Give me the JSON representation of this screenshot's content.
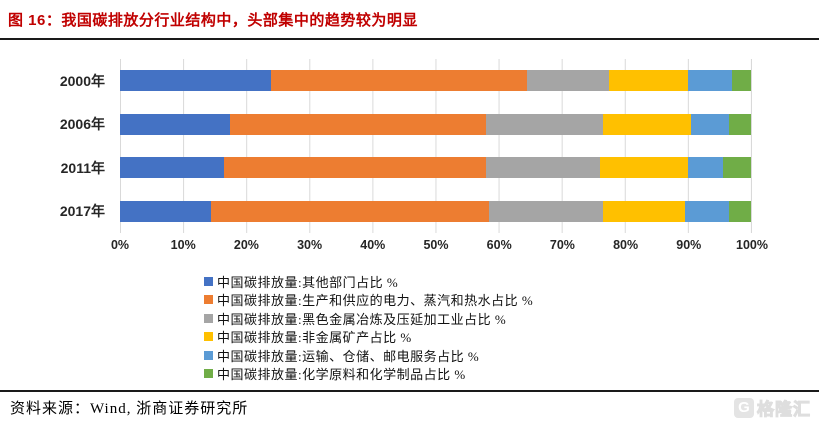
{
  "header": {
    "title": "图  16：我国碳排放分行业结构中，头部集中的趋势较为明显",
    "title_color": "#C00000"
  },
  "chart_data": {
    "type": "bar",
    "orientation": "horizontal-stacked",
    "categories": [
      "2000年",
      "2006年",
      "2011年",
      "2017年"
    ],
    "series": [
      {
        "name": "中国碳排放量:其他部门占比 %",
        "color": "#4472C4",
        "values": [
          24,
          17.5,
          16.5,
          14.5
        ]
      },
      {
        "name": "中国碳排放量:生产和供应的电力、蒸汽和热水占比 %",
        "color": "#ED7D31",
        "values": [
          40.5,
          40.5,
          41.5,
          44
        ]
      },
      {
        "name": "中国碳排放量:黑色金属冶炼及压延加工业占比 %",
        "color": "#A5A5A5",
        "values": [
          13,
          18.5,
          18,
          18
        ]
      },
      {
        "name": "中国碳排放量:非金属矿产占比 %",
        "color": "#FFC000",
        "values": [
          12.5,
          14,
          14,
          13
        ]
      },
      {
        "name": "中国碳排放量:运输、仓储、邮电服务占比 %",
        "color": "#5B9BD5",
        "values": [
          7,
          6,
          5.5,
          7
        ]
      },
      {
        "name": "中国碳排放量:化学原料和化学制品占比 %",
        "color": "#70AD47",
        "values": [
          3,
          3.5,
          4.5,
          3.5
        ]
      }
    ],
    "x_ticks": [
      "0%",
      "10%",
      "20%",
      "30%",
      "40%",
      "50%",
      "60%",
      "70%",
      "80%",
      "90%",
      "100%"
    ],
    "xlim": [
      0,
      100
    ],
    "grid": "vertical-light-gray",
    "legend_position": "bottom-left"
  },
  "footer": {
    "source": "资料来源：Wind, 浙商证券研究所",
    "logo_icon": "G",
    "logo_text": "格隆汇"
  }
}
